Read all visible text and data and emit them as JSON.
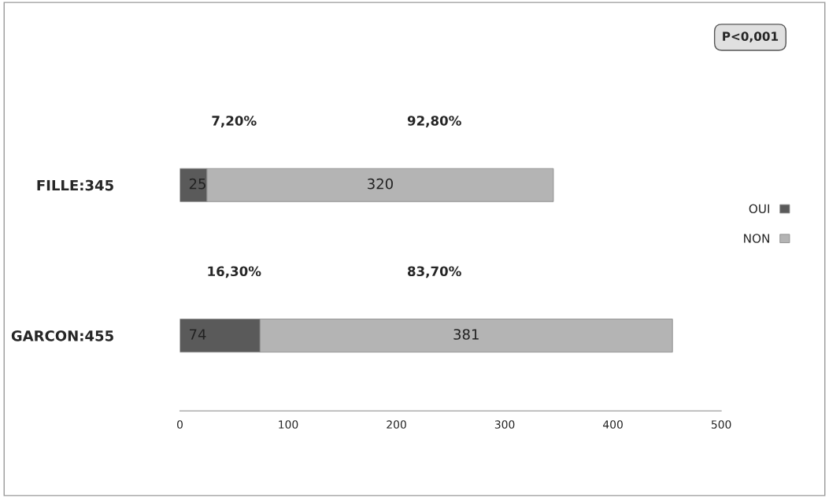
{
  "chart_data": {
    "type": "bar",
    "orientation": "horizontal",
    "stacked": true,
    "categories": [
      "FILLE:345",
      "GARCON:455"
    ],
    "series": [
      {
        "name": "OUI",
        "color": "#5a5a5a",
        "values": [
          25,
          74
        ]
      },
      {
        "name": "NON",
        "color": "#b4b4b4",
        "values": [
          320,
          381
        ]
      }
    ],
    "xlim": [
      0,
      500
    ],
    "xticks": [
      0,
      100,
      200,
      300,
      400,
      500
    ],
    "data_labels": true,
    "grid": false,
    "legend": "right",
    "annotations": [
      "7,20%",
      "92,80%",
      "16,30%",
      "83,70%",
      "P<0,001"
    ]
  }
}
